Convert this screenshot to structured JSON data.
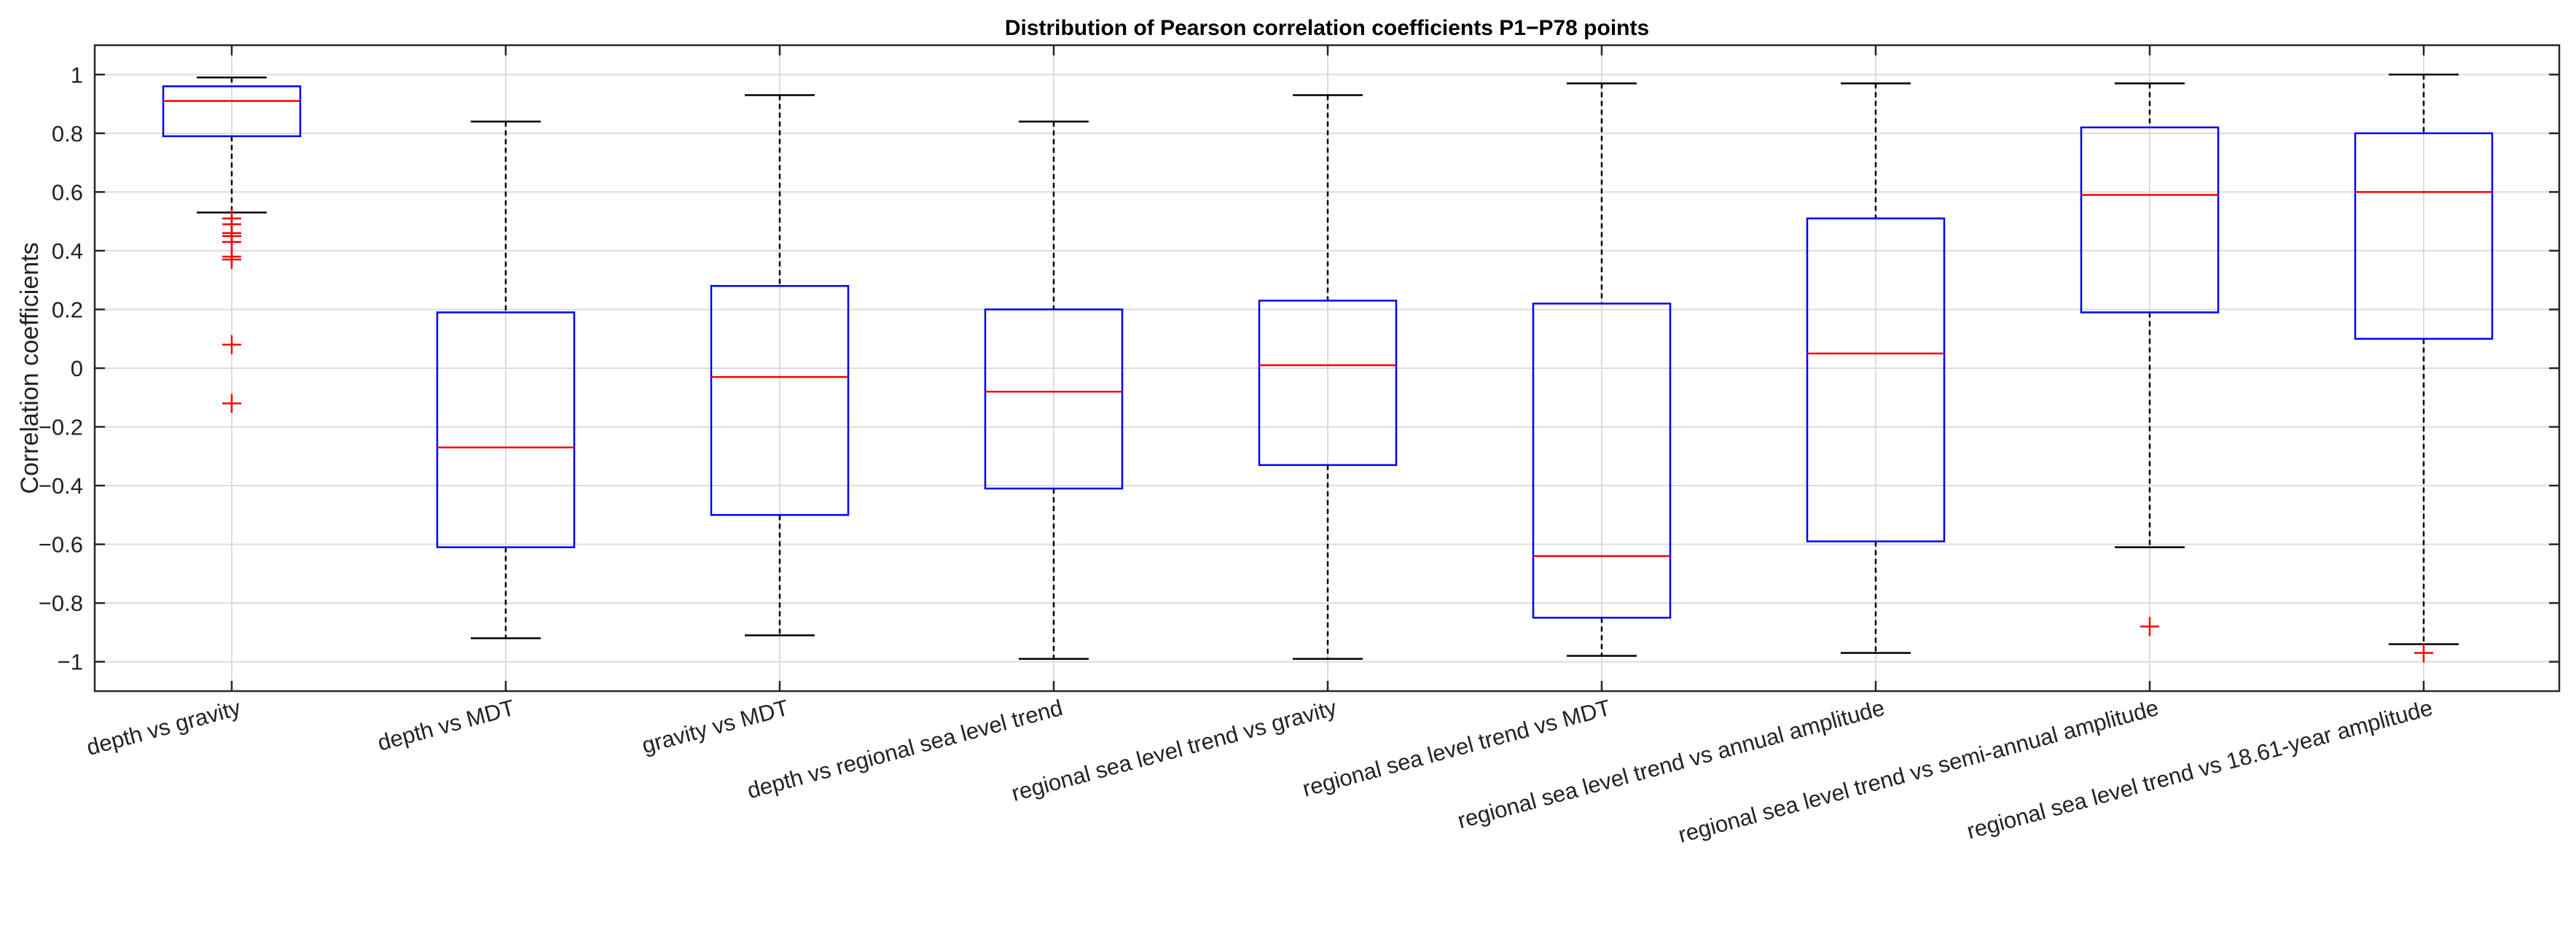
{
  "chart_data": {
    "type": "boxplot",
    "title": "Distribution of Pearson correlation coefficients P1−P78 points",
    "xlabel": "",
    "ylabel": "Correlation coefficients",
    "ylim": [
      -1.1,
      1.1
    ],
    "yticks": [
      1,
      0.8,
      0.6,
      0.4,
      0.2,
      0,
      -0.2,
      -0.4,
      -0.6,
      -0.8,
      -1
    ],
    "ytick_labels": [
      "1",
      "0.8",
      "0.6",
      "0.4",
      "0.2",
      "0",
      "−0.2",
      "−0.4",
      "−0.6",
      "−0.8",
      "−1"
    ],
    "grid": true,
    "colors": {
      "box": "#0000ff",
      "median": "#ff0000",
      "whisker": "#000000",
      "outlier": "#ff0000",
      "grid": "#dcdcdc",
      "axis": "#262626"
    },
    "categories": [
      "depth vs gravity",
      "depth vs MDT",
      "gravity vs MDT",
      "depth vs regional sea level trend",
      "regional sea level trend vs gravity",
      "regional sea level trend vs MDT",
      "regional sea level trend vs annual amplitude",
      "regional sea level trend vs semi-annual amplitude",
      "regional sea level trend vs 18.61-year amplitude"
    ],
    "boxes": [
      {
        "whisker_low": 0.53,
        "q1": 0.79,
        "median": 0.91,
        "q3": 0.96,
        "whisker_high": 0.99,
        "outliers": [
          0.51,
          0.49,
          0.46,
          0.45,
          0.43,
          0.38,
          0.37,
          0.08,
          -0.12
        ]
      },
      {
        "whisker_low": -0.92,
        "q1": -0.61,
        "median": -0.27,
        "q3": 0.19,
        "whisker_high": 0.84,
        "outliers": []
      },
      {
        "whisker_low": -0.91,
        "q1": -0.5,
        "median": -0.03,
        "q3": 0.28,
        "whisker_high": 0.93,
        "outliers": []
      },
      {
        "whisker_low": -0.99,
        "q1": -0.41,
        "median": -0.08,
        "q3": 0.2,
        "whisker_high": 0.84,
        "outliers": []
      },
      {
        "whisker_low": -0.99,
        "q1": -0.33,
        "median": 0.01,
        "q3": 0.23,
        "whisker_high": 0.93,
        "outliers": []
      },
      {
        "whisker_low": -0.98,
        "q1": -0.85,
        "median": -0.64,
        "q3": 0.22,
        "whisker_high": 0.97,
        "outliers": []
      },
      {
        "whisker_low": -0.97,
        "q1": -0.59,
        "median": 0.05,
        "q3": 0.51,
        "whisker_high": 0.97,
        "outliers": []
      },
      {
        "whisker_low": -0.61,
        "q1": 0.19,
        "median": 0.59,
        "q3": 0.82,
        "whisker_high": 0.97,
        "outliers": [
          -0.88
        ]
      },
      {
        "whisker_low": -0.94,
        "q1": 0.1,
        "median": 0.6,
        "q3": 0.8,
        "whisker_high": 1.0,
        "outliers": [
          -0.97
        ]
      }
    ]
  }
}
